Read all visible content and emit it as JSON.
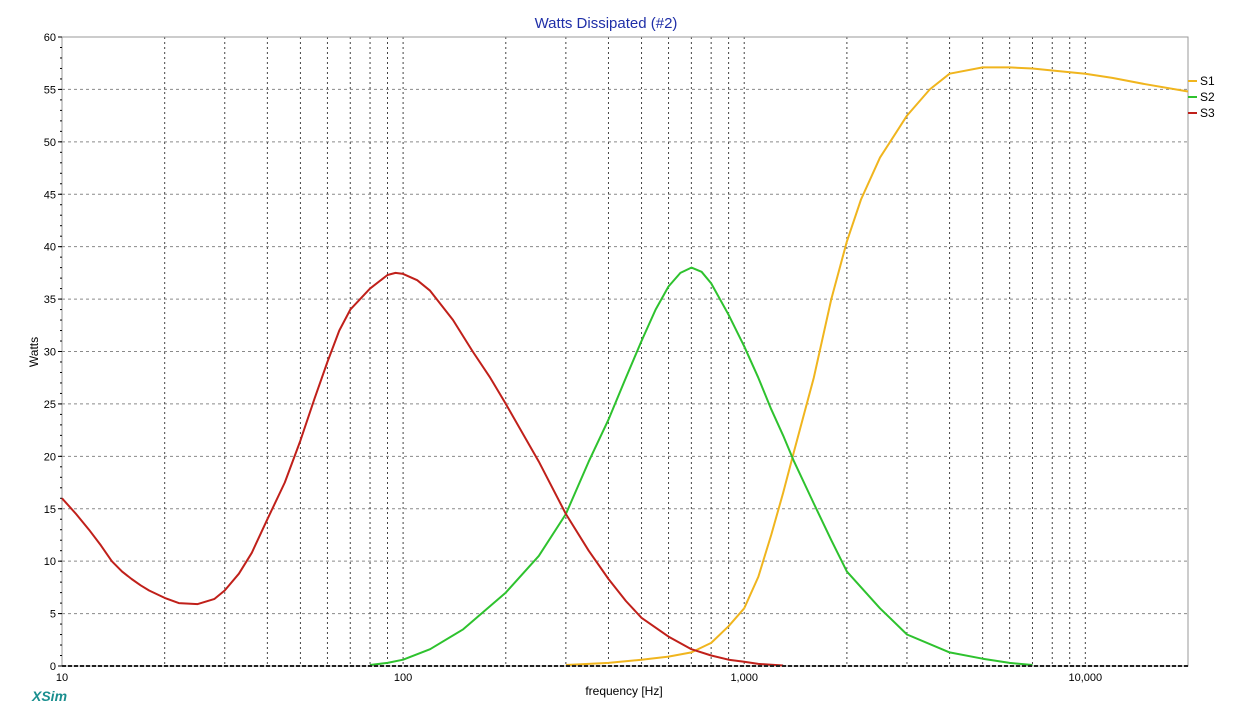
{
  "brand": "XSim",
  "chart_data": {
    "type": "line",
    "title": "Watts Dissipated (#2)",
    "xlabel": "frequency [Hz]",
    "ylabel": "Watts",
    "xscale": "log",
    "xlim": [
      10,
      20000
    ],
    "ylim": [
      0,
      60
    ],
    "yticks": [
      0,
      5,
      10,
      15,
      20,
      25,
      30,
      35,
      40,
      45,
      50,
      55,
      60
    ],
    "xtick_labels": [
      {
        "value": 10,
        "label": "10"
      },
      {
        "value": 100,
        "label": "100"
      },
      {
        "value": 1000,
        "label": "1,000"
      },
      {
        "value": 10000,
        "label": "10,000"
      }
    ],
    "grid": true,
    "legend_position": "right",
    "series": [
      {
        "name": "S1",
        "color": "#f0b51e",
        "points": [
          [
            300,
            0.1
          ],
          [
            400,
            0.3
          ],
          [
            500,
            0.6
          ],
          [
            600,
            0.9
          ],
          [
            700,
            1.3
          ],
          [
            800,
            2.2
          ],
          [
            900,
            3.8
          ],
          [
            1000,
            5.5
          ],
          [
            1100,
            8.5
          ],
          [
            1200,
            12.5
          ],
          [
            1300,
            16.5
          ],
          [
            1400,
            20.5
          ],
          [
            1600,
            27.5
          ],
          [
            1800,
            35
          ],
          [
            2000,
            40.5
          ],
          [
            2200,
            44.5
          ],
          [
            2500,
            48.5
          ],
          [
            3000,
            52.5
          ],
          [
            3500,
            55
          ],
          [
            4000,
            56.5
          ],
          [
            5000,
            57.1
          ],
          [
            6000,
            57.1
          ],
          [
            7000,
            57
          ],
          [
            8000,
            56.8
          ],
          [
            10000,
            56.5
          ],
          [
            12000,
            56.1
          ],
          [
            15000,
            55.5
          ],
          [
            20000,
            54.8
          ]
        ]
      },
      {
        "name": "S2",
        "color": "#2ec22e",
        "points": [
          [
            80,
            0.1
          ],
          [
            90,
            0.3
          ],
          [
            100,
            0.6
          ],
          [
            120,
            1.6
          ],
          [
            150,
            3.5
          ],
          [
            200,
            7
          ],
          [
            250,
            10.5
          ],
          [
            300,
            14.5
          ],
          [
            350,
            19.5
          ],
          [
            400,
            23.5
          ],
          [
            450,
            27.5
          ],
          [
            500,
            31
          ],
          [
            550,
            34
          ],
          [
            600,
            36.2
          ],
          [
            650,
            37.5
          ],
          [
            700,
            38
          ],
          [
            750,
            37.6
          ],
          [
            800,
            36.5
          ],
          [
            900,
            33.5
          ],
          [
            1000,
            30.5
          ],
          [
            1100,
            27.5
          ],
          [
            1200,
            24.5
          ],
          [
            1300,
            22
          ],
          [
            1400,
            19.5
          ],
          [
            1600,
            15.5
          ],
          [
            1800,
            12
          ],
          [
            2000,
            9
          ],
          [
            2500,
            5.5
          ],
          [
            3000,
            3
          ],
          [
            4000,
            1.3
          ],
          [
            5000,
            0.7
          ],
          [
            6000,
            0.3
          ],
          [
            7000,
            0.1
          ]
        ]
      },
      {
        "name": "S3",
        "color": "#c0201a",
        "points": [
          [
            10,
            16
          ],
          [
            11,
            14.5
          ],
          [
            12,
            13
          ],
          [
            13,
            11.5
          ],
          [
            14,
            10
          ],
          [
            15,
            9
          ],
          [
            16,
            8.3
          ],
          [
            17,
            7.7
          ],
          [
            18,
            7.2
          ],
          [
            20,
            6.5
          ],
          [
            22,
            6
          ],
          [
            25,
            5.9
          ],
          [
            28,
            6.4
          ],
          [
            30,
            7.2
          ],
          [
            33,
            8.8
          ],
          [
            36,
            10.8
          ],
          [
            40,
            14
          ],
          [
            45,
            17.5
          ],
          [
            50,
            21.5
          ],
          [
            55,
            25.5
          ],
          [
            60,
            29
          ],
          [
            65,
            32
          ],
          [
            70,
            34
          ],
          [
            80,
            36
          ],
          [
            90,
            37.3
          ],
          [
            95,
            37.5
          ],
          [
            100,
            37.4
          ],
          [
            110,
            36.8
          ],
          [
            120,
            35.8
          ],
          [
            140,
            33
          ],
          [
            160,
            30
          ],
          [
            180,
            27.5
          ],
          [
            200,
            25
          ],
          [
            250,
            19.5
          ],
          [
            300,
            14.5
          ],
          [
            350,
            11
          ],
          [
            400,
            8.3
          ],
          [
            450,
            6.2
          ],
          [
            500,
            4.6
          ],
          [
            600,
            2.8
          ],
          [
            700,
            1.6
          ],
          [
            800,
            1
          ],
          [
            900,
            0.6
          ],
          [
            1000,
            0.4
          ],
          [
            1100,
            0.2
          ],
          [
            1300,
            0.05
          ]
        ]
      }
    ]
  }
}
